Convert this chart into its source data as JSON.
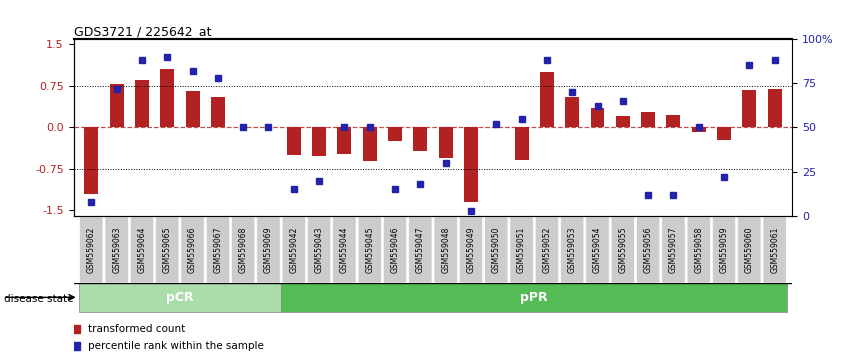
{
  "title": "GDS3721 / 225642_at",
  "samples": [
    "GSM559062",
    "GSM559063",
    "GSM559064",
    "GSM559065",
    "GSM559066",
    "GSM559067",
    "GSM559068",
    "GSM559069",
    "GSM559042",
    "GSM559043",
    "GSM559044",
    "GSM559045",
    "GSM559046",
    "GSM559047",
    "GSM559048",
    "GSM559049",
    "GSM559050",
    "GSM559051",
    "GSM559052",
    "GSM559053",
    "GSM559054",
    "GSM559055",
    "GSM559056",
    "GSM559057",
    "GSM559058",
    "GSM559059",
    "GSM559060",
    "GSM559061"
  ],
  "bar_values": [
    -1.2,
    0.78,
    0.85,
    1.05,
    0.65,
    0.55,
    0.0,
    0.0,
    -0.5,
    -0.52,
    -0.48,
    -0.6,
    -0.25,
    -0.42,
    -0.55,
    -1.35,
    0.0,
    -0.58,
    1.0,
    0.55,
    0.35,
    0.2,
    0.28,
    0.22,
    -0.08,
    -0.22,
    0.68,
    0.7
  ],
  "blue_values": [
    8,
    72,
    88,
    90,
    82,
    78,
    50,
    50,
    15,
    20,
    50,
    50,
    15,
    18,
    30,
    3,
    52,
    55,
    88,
    70,
    62,
    65,
    12,
    12,
    50,
    22,
    85,
    88
  ],
  "pCR_count": 8,
  "pPR_count": 20,
  "bar_color": "#b22222",
  "blue_color": "#2222aa",
  "pCR_color": "#aaddaa",
  "pPR_color": "#55bb55",
  "ylim": [
    -1.6,
    1.6
  ],
  "yticks_left": [
    -1.5,
    -0.75,
    0.0,
    0.75,
    1.5
  ],
  "yticks_right": [
    0,
    25,
    50,
    75,
    100
  ],
  "hline_y": 0.0,
  "dotted_lines": [
    -0.75,
    0.75
  ],
  "label_disease_state": "disease state",
  "label_pCR": "pCR",
  "label_pPR": "pPR",
  "legend_transformed": "transformed count",
  "legend_percentile": "percentile rank within the sample"
}
